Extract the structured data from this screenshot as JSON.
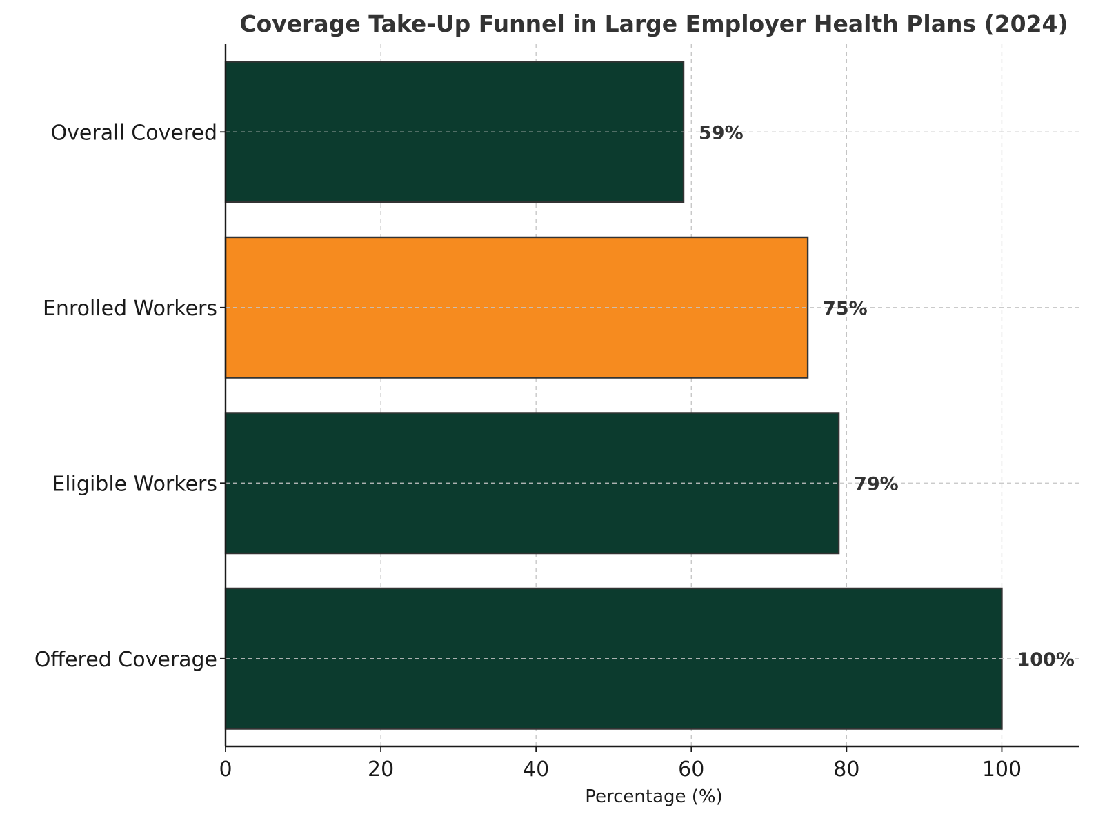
{
  "chart_data": {
    "type": "bar",
    "orientation": "horizontal",
    "title": "Coverage Take-Up Funnel in Large Employer Health Plans (2024)",
    "xlabel": "Percentage (%)",
    "ylabel": "",
    "categories": [
      "Offered Coverage",
      "Eligible Workers",
      "Enrolled Workers",
      "Overall Covered"
    ],
    "values": [
      100,
      79,
      75,
      59
    ],
    "value_labels": [
      "100%",
      "79%",
      "75%",
      "59%"
    ],
    "bar_colors": [
      "#0c3b2e",
      "#0c3b2e",
      "#f68b1f",
      "#0c3b2e"
    ],
    "highlight_category": "Enrolled Workers",
    "edge_color": "#333333",
    "xlim": [
      0,
      110
    ],
    "xticks": [
      0,
      20,
      40,
      60,
      80,
      100
    ],
    "xtick_labels": [
      "0",
      "20",
      "40",
      "60",
      "80",
      "100"
    ],
    "grid": true,
    "legend": "none"
  }
}
